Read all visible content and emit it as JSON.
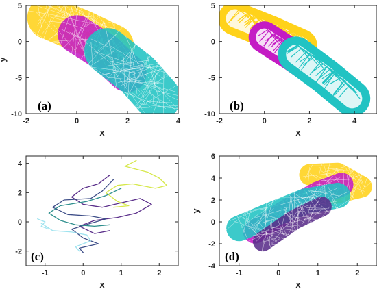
{
  "colors": {
    "yellow": "#FFD21A",
    "magenta": "#C41BC4",
    "cyan": "#21C3C3",
    "purple": "#5A2E8A",
    "navy": "#3E4E88",
    "green_blue": "#2C8E8C",
    "lime": "#D6E84A",
    "light_cyan": "#9FE3EF"
  },
  "chart_data": [
    {
      "id": "a",
      "type": "scatter",
      "panel_label": "(a)",
      "xlabel": "x",
      "ylabel": "y",
      "xlim": [
        -2,
        4
      ],
      "ylim": [
        -10,
        5
      ],
      "xticks": [
        -2,
        0,
        2,
        4
      ],
      "yticks": [
        5,
        0,
        -5,
        -10
      ],
      "grid": false,
      "series": [
        {
          "color": "yellow",
          "style": "filled",
          "path": [
            [
              -1.1,
              3.3
            ],
            [
              0.2,
              1.4
            ],
            [
              1.4,
              -0.6
            ]
          ],
          "width": 1.7
        },
        {
          "color": "magenta",
          "style": "filled",
          "path": [
            [
              0.0,
              1.0
            ],
            [
              1.1,
              -1.5
            ],
            [
              2.0,
              -4.4
            ]
          ],
          "width": 1.5
        },
        {
          "color": "cyan",
          "style": "filled",
          "path": [
            [
              1.2,
              -1.3
            ],
            [
              2.4,
              -4.6
            ],
            [
              3.2,
              -7.8
            ]
          ],
          "width": 1.8
        }
      ]
    },
    {
      "id": "b",
      "type": "scatter",
      "panel_label": "(b)",
      "xlabel": "x",
      "ylabel": "",
      "xlim": [
        -2,
        5
      ],
      "ylim": [
        -10,
        5
      ],
      "xticks": [
        -2,
        0,
        2,
        4
      ],
      "yticks": [
        5,
        0,
        -5,
        -10
      ],
      "grid": false,
      "series": [
        {
          "color": "yellow",
          "style": "ribbon",
          "path": [
            [
              -1.3,
              3.2
            ],
            [
              0.3,
              1.2
            ],
            [
              1.6,
              -0.6
            ]
          ],
          "width": 1.5
        },
        {
          "color": "magenta",
          "style": "ribbon",
          "path": [
            [
              0.0,
              0.6
            ],
            [
              1.2,
              -1.8
            ],
            [
              2.5,
              -4.6
            ]
          ],
          "width": 1.4
        },
        {
          "color": "cyan",
          "style": "ribbon",
          "path": [
            [
              1.4,
              -1.8
            ],
            [
              2.7,
              -4.8
            ],
            [
              3.9,
              -7.9
            ]
          ],
          "width": 1.6
        }
      ]
    },
    {
      "id": "c",
      "type": "line",
      "panel_label": "(c)",
      "xlabel": "x",
      "ylabel": "",
      "xlim": [
        -1.5,
        2.5
      ],
      "ylim": [
        -3,
        4.5
      ],
      "xticks": [
        -1,
        0,
        1,
        2
      ],
      "yticks": [
        4,
        2,
        0,
        -2
      ],
      "grid": false,
      "series": [
        {
          "color": "lime",
          "points": [
            [
              1.4,
              4.2
            ],
            [
              1.1,
              3.8
            ],
            [
              1.4,
              3.6
            ],
            [
              1.7,
              3.4
            ],
            [
              2.0,
              3.0
            ],
            [
              2.2,
              2.5
            ],
            [
              1.9,
              2.3
            ],
            [
              1.3,
              2.6
            ],
            [
              0.9,
              2.5
            ],
            [
              0.6,
              2.0
            ],
            [
              0.9,
              1.4
            ],
            [
              1.2,
              1.1
            ],
            [
              0.8,
              1.0
            ]
          ]
        },
        {
          "color": "purple",
          "points": [
            [
              0.7,
              3.2
            ],
            [
              0.4,
              2.6
            ],
            [
              0.0,
              2.3
            ],
            [
              -0.3,
              1.7
            ],
            [
              0.0,
              1.2
            ],
            [
              0.5,
              1.0
            ],
            [
              1.0,
              1.3
            ],
            [
              1.5,
              1.6
            ],
            [
              1.8,
              1.2
            ],
            [
              1.4,
              0.6
            ],
            [
              0.9,
              0.3
            ],
            [
              0.3,
              0.1
            ],
            [
              -0.1,
              -0.3
            ],
            [
              0.3,
              -0.8
            ],
            [
              0.7,
              -0.6
            ]
          ]
        },
        {
          "color": "navy",
          "points": [
            [
              0.8,
              2.9
            ],
            [
              0.5,
              2.1
            ],
            [
              0.2,
              1.6
            ],
            [
              -0.5,
              1.5
            ],
            [
              -0.8,
              1.0
            ],
            [
              -0.4,
              0.5
            ],
            [
              0.2,
              0.4
            ],
            [
              0.6,
              0.2
            ],
            [
              0.2,
              -0.1
            ],
            [
              -0.3,
              -0.5
            ],
            [
              0.0,
              -1.1
            ],
            [
              0.4,
              -1.5
            ],
            [
              -0.1,
              -1.8
            ],
            [
              0.0,
              -2.1
            ]
          ]
        },
        {
          "color": "green_blue",
          "points": [
            [
              1.0,
              2.3
            ],
            [
              0.6,
              1.8
            ],
            [
              0.1,
              1.4
            ],
            [
              -0.6,
              1.1
            ],
            [
              -0.9,
              0.6
            ],
            [
              -0.6,
              0.1
            ],
            [
              -0.2,
              -0.2
            ],
            [
              0.3,
              -0.3
            ],
            [
              0.7,
              -0.2
            ]
          ]
        },
        {
          "color": "light_cyan",
          "points": [
            [
              -1.1,
              -0.1
            ],
            [
              -0.8,
              -0.6
            ],
            [
              -0.3,
              -0.7
            ],
            [
              0.1,
              -0.9
            ],
            [
              0.2,
              -1.3
            ],
            [
              -0.2,
              -1.7
            ],
            [
              -0.1,
              -2.0
            ]
          ]
        },
        {
          "color": "light_cyan",
          "points": [
            [
              -1.2,
              0.2
            ],
            [
              -1.0,
              0.0
            ],
            [
              -1.1,
              -0.3
            ],
            [
              -0.9,
              -0.5
            ]
          ]
        }
      ]
    },
    {
      "id": "d",
      "type": "scatter",
      "panel_label": "(d)",
      "xlabel": "x",
      "ylabel": "y",
      "xlim": [
        -1.5,
        2.5
      ],
      "ylim": [
        -4,
        6
      ],
      "xticks": [
        -1,
        0,
        1,
        2
      ],
      "yticks": [
        6,
        4,
        2,
        0,
        -2,
        -4
      ],
      "grid": false,
      "series": [
        {
          "color": "yellow",
          "style": "filled",
          "path": [
            [
              0.8,
              4.3
            ],
            [
              1.5,
              4.4
            ],
            [
              2.1,
              3.2
            ],
            [
              1.4,
              2.6
            ]
          ],
          "width": 0.55
        },
        {
          "color": "magenta",
          "style": "filled",
          "path": [
            [
              -0.6,
              -0.9
            ],
            [
              0.3,
              1.2
            ],
            [
              1.0,
              2.6
            ],
            [
              1.6,
              3.4
            ]
          ],
          "width": 0.6
        },
        {
          "color": "cyan",
          "style": "filled",
          "path": [
            [
              -1.0,
              -0.6
            ],
            [
              -0.2,
              0.6
            ],
            [
              0.7,
              1.9
            ],
            [
              1.5,
              2.4
            ]
          ],
          "width": 0.65
        },
        {
          "color": "purple",
          "style": "filled",
          "path": [
            [
              -0.4,
              -1.8
            ],
            [
              0.4,
              0.2
            ],
            [
              1.1,
              1.4
            ]
          ],
          "width": 0.5
        }
      ]
    }
  ]
}
